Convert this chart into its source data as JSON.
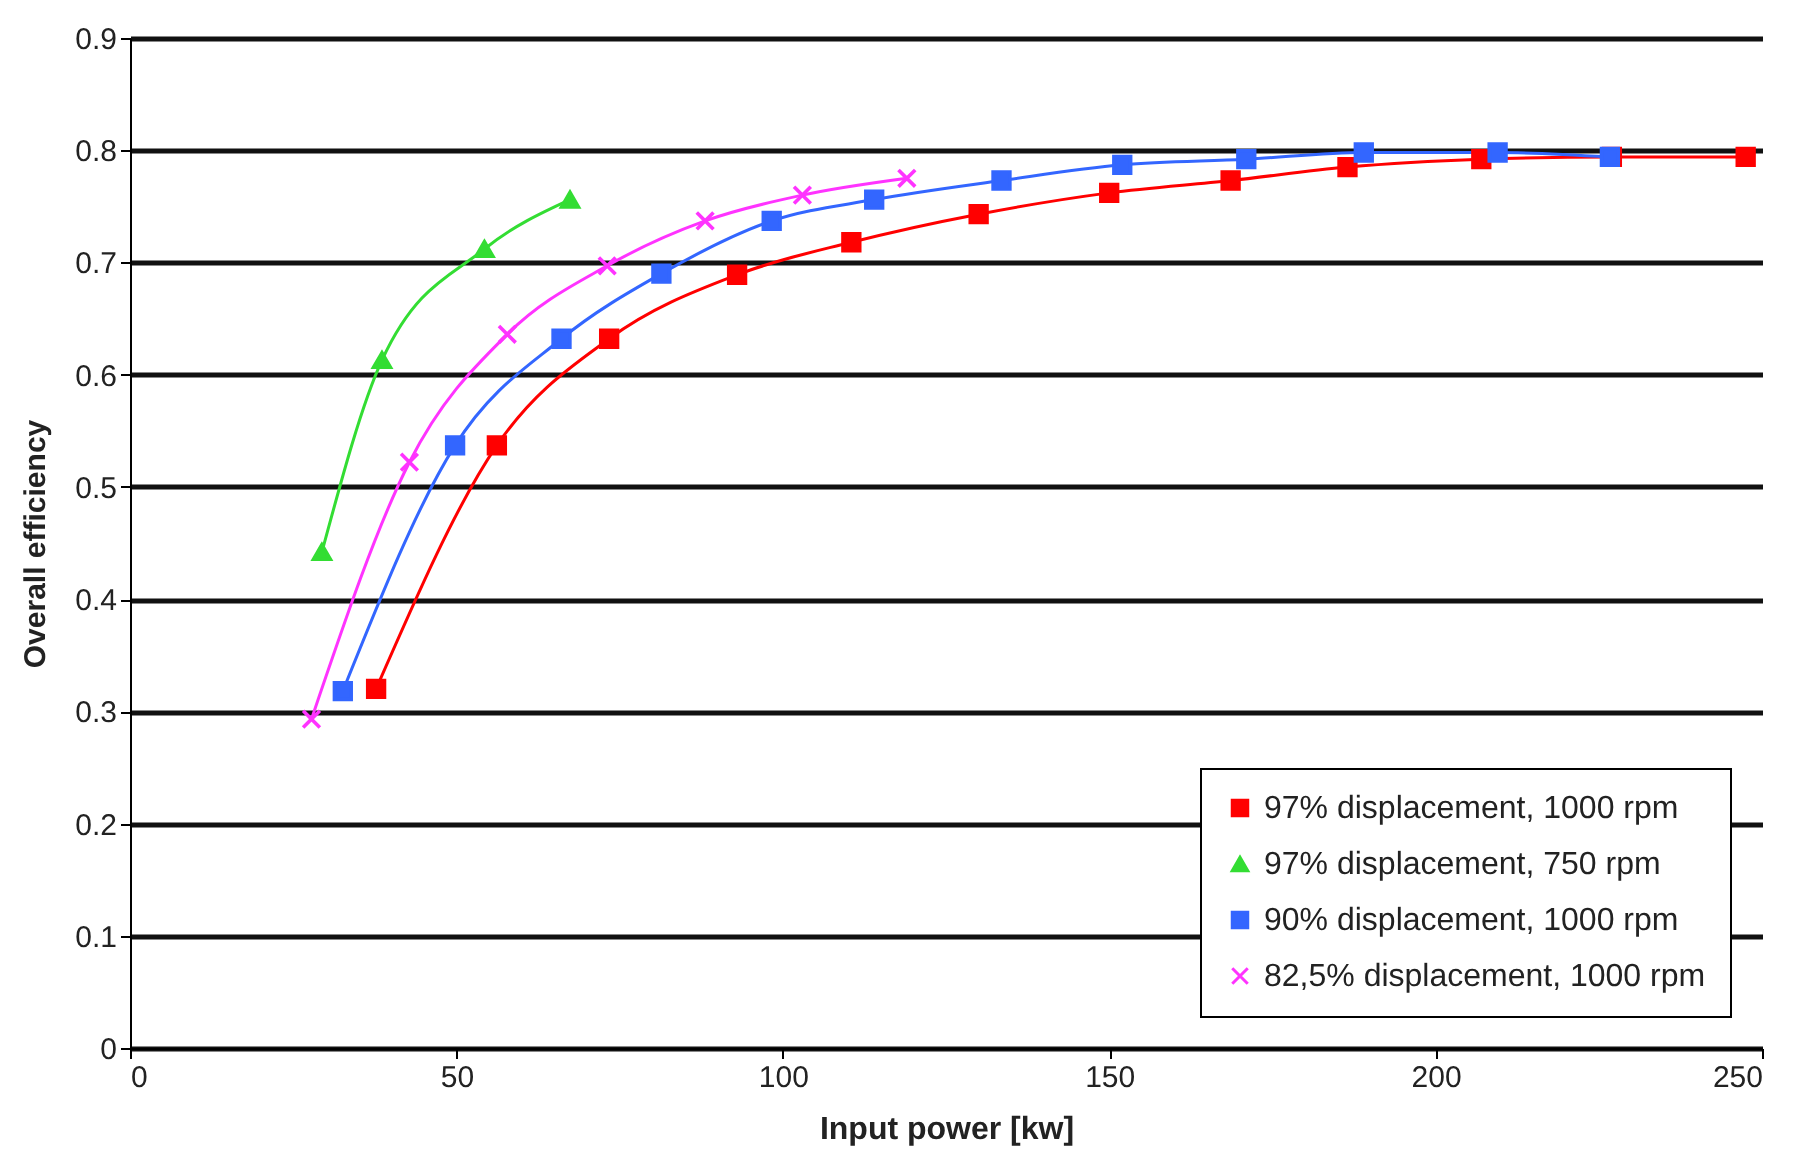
{
  "chart_data": {
    "type": "line",
    "xlabel": "Input power [kw]",
    "ylabel": "Overall efficiency",
    "xlim": [
      0,
      250
    ],
    "xticks": [
      0,
      50,
      100,
      150,
      200,
      250
    ],
    "ylim": [
      0,
      0.9
    ],
    "yticks": [
      0,
      0.1,
      0.2,
      0.3,
      0.4,
      0.5,
      0.6,
      0.7,
      0.8,
      0.9
    ],
    "grid": "y",
    "legend": "bottom right",
    "line_style": "solid",
    "series": [
      {
        "name": "97% displacement, 1000 rpm",
        "color": "#ff0000",
        "marker": "square",
        "x": [
          37.7,
          56.2,
          73.4,
          93,
          110.5,
          130,
          150,
          168.6,
          186.5,
          207,
          227,
          247.5
        ],
        "values": [
          0.32,
          0.537,
          0.632,
          0.689,
          0.718,
          0.743,
          0.762,
          0.773,
          0.785,
          0.792,
          0.794,
          0.794
        ]
      },
      {
        "name": "97% displacement, 750 rpm",
        "color": "#33dd33",
        "marker": "triangle",
        "x": [
          29.4,
          38.6,
          54.3,
          67.4
        ],
        "values": [
          0.442,
          0.613,
          0.712,
          0.756
        ]
      },
      {
        "name": "90% displacement, 1000 rpm",
        "color": "#3366ff",
        "marker": "square",
        "x": [
          32.6,
          49.8,
          66.1,
          81.4,
          98.3,
          114,
          133.5,
          152,
          171,
          189,
          209.5,
          226.7
        ],
        "values": [
          0.318,
          0.537,
          0.632,
          0.69,
          0.737,
          0.756,
          0.773,
          0.787,
          0.792,
          0.798,
          0.798,
          0.794
        ]
      },
      {
        "name": "82,5% displacement, 1000 rpm",
        "color": "#ff33ff",
        "marker": "cross",
        "x": [
          27.8,
          42.8,
          57.8,
          73.1,
          88.1,
          103,
          119
        ],
        "values": [
          0.293,
          0.522,
          0.636,
          0.697,
          0.737,
          0.76,
          0.775
        ]
      }
    ]
  }
}
